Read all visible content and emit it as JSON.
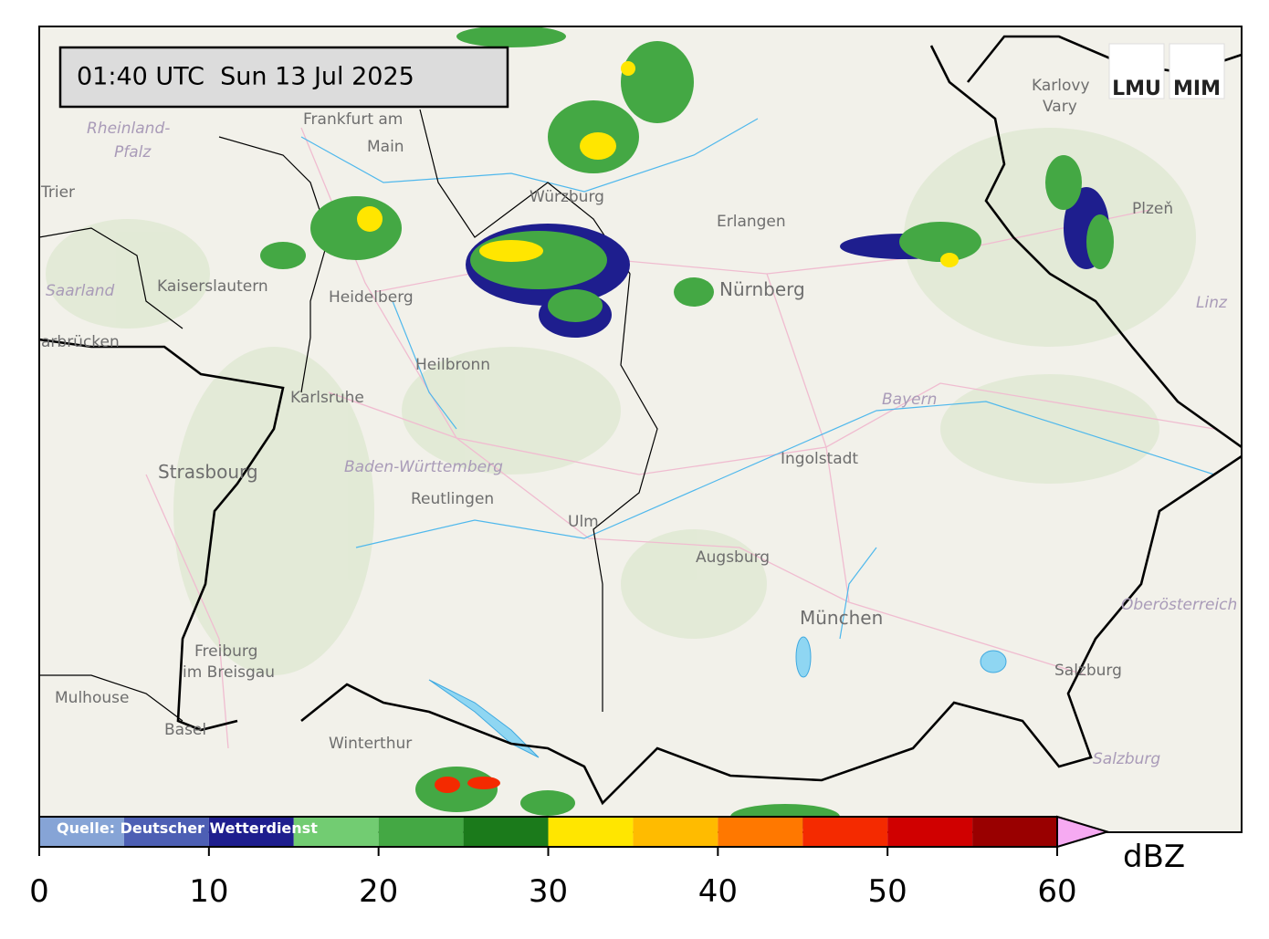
{
  "timestamp": "01:40 UTC  Sun 13 Jul 2025",
  "logos": [
    "LMU",
    "MIM"
  ],
  "places": {
    "frankfurt": [
      "Frankfurt am",
      "Main"
    ],
    "rheinland_pfalz": [
      "Rheinland-",
      "Pfalz"
    ],
    "trier": "Trier",
    "kaiserslautern": "Kaiserslautern",
    "saarland": "Saarland",
    "saarbruecken": "arbrücken",
    "heidelberg": "Heidelberg",
    "heilbronn": "Heilbronn",
    "karlsruhe": "Karlsruhe",
    "strasbourg": "Strasbourg",
    "baden_wuerttemberg": "Baden-Württemberg",
    "reutlingen": "Reutlingen",
    "ulm": "Ulm",
    "augsburg": "Augsburg",
    "muenchen": "München",
    "ingolstadt": "Ingolstadt",
    "nuernberg": "Nürnberg",
    "erlangen": "Erlangen",
    "wuerzburg": "Würzburg",
    "bayern": "Bayern",
    "karlovy_vary": [
      "Karlovy",
      "Vary"
    ],
    "plzen": "Plzeň",
    "freiburg": [
      "Freiburg",
      "im Breisgau"
    ],
    "mulhouse": "Mulhouse",
    "basel": "Basel",
    "winterthur": "Winterthur",
    "salzburg_city": "Salzburg",
    "salzburg_land": "Salzburg",
    "oberoesterreich": "Oberösterreich",
    "linz": "Linz"
  },
  "colorbar": {
    "bounds": [
      0,
      5,
      10,
      15,
      20,
      25,
      30,
      35,
      40,
      45,
      50,
      55,
      60
    ],
    "colors": [
      "#86a4d6",
      "#4d5fb4",
      "#1e1e8e",
      "#72cc72",
      "#44a844",
      "#1b7a1b",
      "#ffe600",
      "#ffbb00",
      "#ff7800",
      "#f42a00",
      "#d00000",
      "#990000"
    ],
    "extend_color": "#f6aaf2",
    "xlim": [
      0,
      60
    ],
    "ticks": [
      0,
      10,
      20,
      30,
      40,
      50,
      60
    ],
    "unit": "dBZ",
    "source": "Quelle: Deutscher Wetterdienst"
  }
}
